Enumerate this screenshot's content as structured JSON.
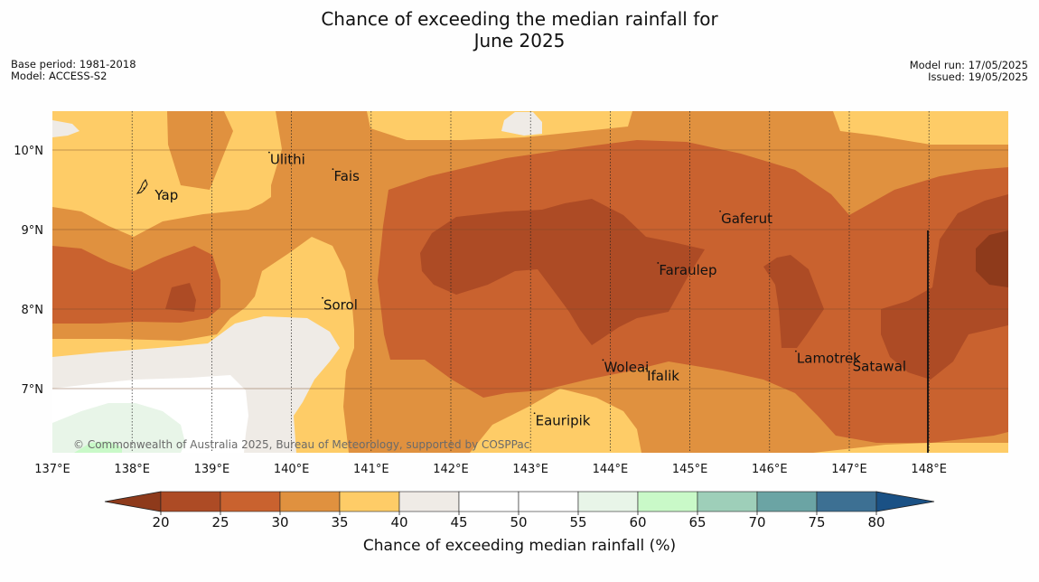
{
  "title": {
    "line1": "Chance of exceeding the median rainfall for",
    "line2": "June 2025"
  },
  "meta": {
    "base_period": "Base period: 1981-2018",
    "model": "Model: ACCESS-S2",
    "model_run": "Model run: 17/05/2025",
    "issued": "Issued: 19/05/2025"
  },
  "copyright": "© Commonwealth of Australia 2025, Bureau of Meteorology, supported by COSPPac",
  "axes": {
    "lon_ticks": [
      "137°E",
      "138°E",
      "139°E",
      "140°E",
      "141°E",
      "142°E",
      "143°E",
      "144°E",
      "145°E",
      "146°E",
      "147°E",
      "148°E"
    ],
    "lat_ticks": [
      "10°N",
      "9°N",
      "8°N",
      "7°N"
    ]
  },
  "places": [
    {
      "name": "Yap",
      "lon": 138.15,
      "lat": 9.52
    },
    {
      "name": "Ulithi",
      "lon": 139.72,
      "lat": 9.97
    },
    {
      "name": "Fais",
      "lon": 140.52,
      "lat": 9.76
    },
    {
      "name": "Gaferut",
      "lon": 145.38,
      "lat": 9.23
    },
    {
      "name": "Faraulep",
      "lon": 144.6,
      "lat": 8.58
    },
    {
      "name": "Sorol",
      "lon": 140.39,
      "lat": 8.14
    },
    {
      "name": "Lamotrek",
      "lon": 146.33,
      "lat": 7.47
    },
    {
      "name": "Woleai",
      "lon": 143.91,
      "lat": 7.36
    },
    {
      "name": "Ifalik",
      "lon": 144.45,
      "lat": 7.25
    },
    {
      "name": "Satawal",
      "lon": 147.03,
      "lat": 7.37
    },
    {
      "name": "Eauripik",
      "lon": 143.05,
      "lat": 6.69
    }
  ],
  "colorbar": {
    "title": "Chance of exceeding median rainfall (%)",
    "ticks": [
      "20",
      "25",
      "30",
      "35",
      "40",
      "45",
      "50",
      "55",
      "60",
      "65",
      "70",
      "75",
      "80"
    ],
    "colors": {
      "under": "#8e3a1b",
      "b20_25": "#ad4b25",
      "b25_30": "#c9622f",
      "b30_35": "#e0913f",
      "b35_40": "#fecc67",
      "b40_45": "#efebe6",
      "b45_50": "#ffffff",
      "b50_55": "#ffffff",
      "b55_60": "#e8f5e8",
      "b60_65": "#c9f9c8",
      "b65_70": "#9ecfb9",
      "b70_75": "#6ba4a4",
      "b75_80": "#3d7093",
      "over": "#1a5185"
    }
  }
}
